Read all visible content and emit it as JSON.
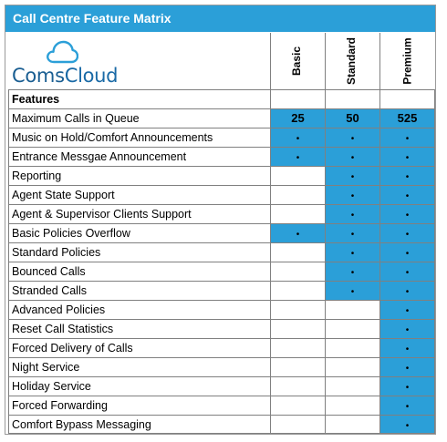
{
  "title": "Call Centre Feature Matrix",
  "logo": {
    "text_light": "Coms",
    "text_bold": "Cloud",
    "icon": "cloud-icon"
  },
  "colors": {
    "accent": "#2b9fd8"
  },
  "columns": [
    "Basic",
    "Standard",
    "Premium"
  ],
  "header_row": "Features",
  "rows": [
    {
      "feature": "Maximum Calls in Queue",
      "values": [
        "25",
        "50",
        "525"
      ]
    },
    {
      "feature": "Music on Hold/Comfort Announcements",
      "values": [
        "•",
        "•",
        "•"
      ]
    },
    {
      "feature": "Entrance Messgae Announcement",
      "values": [
        "•",
        "•",
        "•"
      ]
    },
    {
      "feature": "Reporting",
      "values": [
        "",
        "•",
        "•"
      ]
    },
    {
      "feature": "Agent State Support",
      "values": [
        "",
        "•",
        "•"
      ]
    },
    {
      "feature": "Agent & Supervisor Clients Support",
      "values": [
        "",
        "•",
        "•"
      ]
    },
    {
      "feature": "Basic Policies Overflow",
      "values": [
        "•",
        "•",
        "•"
      ]
    },
    {
      "feature": "Standard Policies",
      "values": [
        "",
        "•",
        "•"
      ]
    },
    {
      "feature": "Bounced Calls",
      "values": [
        "",
        "•",
        "•"
      ]
    },
    {
      "feature": "Stranded Calls",
      "values": [
        "",
        "•",
        "•"
      ]
    },
    {
      "feature": "Advanced Policies",
      "values": [
        "",
        "",
        "•"
      ]
    },
    {
      "feature": "Reset Call Statistics",
      "values": [
        "",
        "",
        "•"
      ]
    },
    {
      "feature": "Forced Delivery of Calls",
      "values": [
        "",
        "",
        "•"
      ]
    },
    {
      "feature": "Night Service",
      "values": [
        "",
        "",
        "•"
      ]
    },
    {
      "feature": "Holiday Service",
      "values": [
        "",
        "",
        "•"
      ]
    },
    {
      "feature": "Forced Forwarding",
      "values": [
        "",
        "",
        "•"
      ]
    },
    {
      "feature": "Comfort Bypass Messaging",
      "values": [
        "",
        "",
        "•"
      ]
    }
  ]
}
